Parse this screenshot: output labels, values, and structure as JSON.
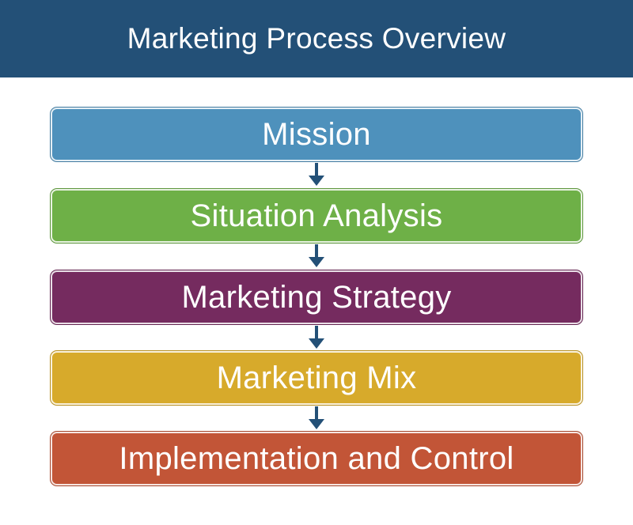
{
  "header": {
    "title": "Marketing Process Overview",
    "background": "#235077"
  },
  "steps": [
    {
      "label": "Mission",
      "color": "#4e91bc"
    },
    {
      "label": "Situation Analysis",
      "color": "#6eb047"
    },
    {
      "label": "Marketing Strategy",
      "color": "#752b5f"
    },
    {
      "label": "Marketing Mix",
      "color": "#d7aa2b"
    },
    {
      "label": "Implementation and Control",
      "color": "#c25537"
    }
  ],
  "arrow_color": "#235077"
}
